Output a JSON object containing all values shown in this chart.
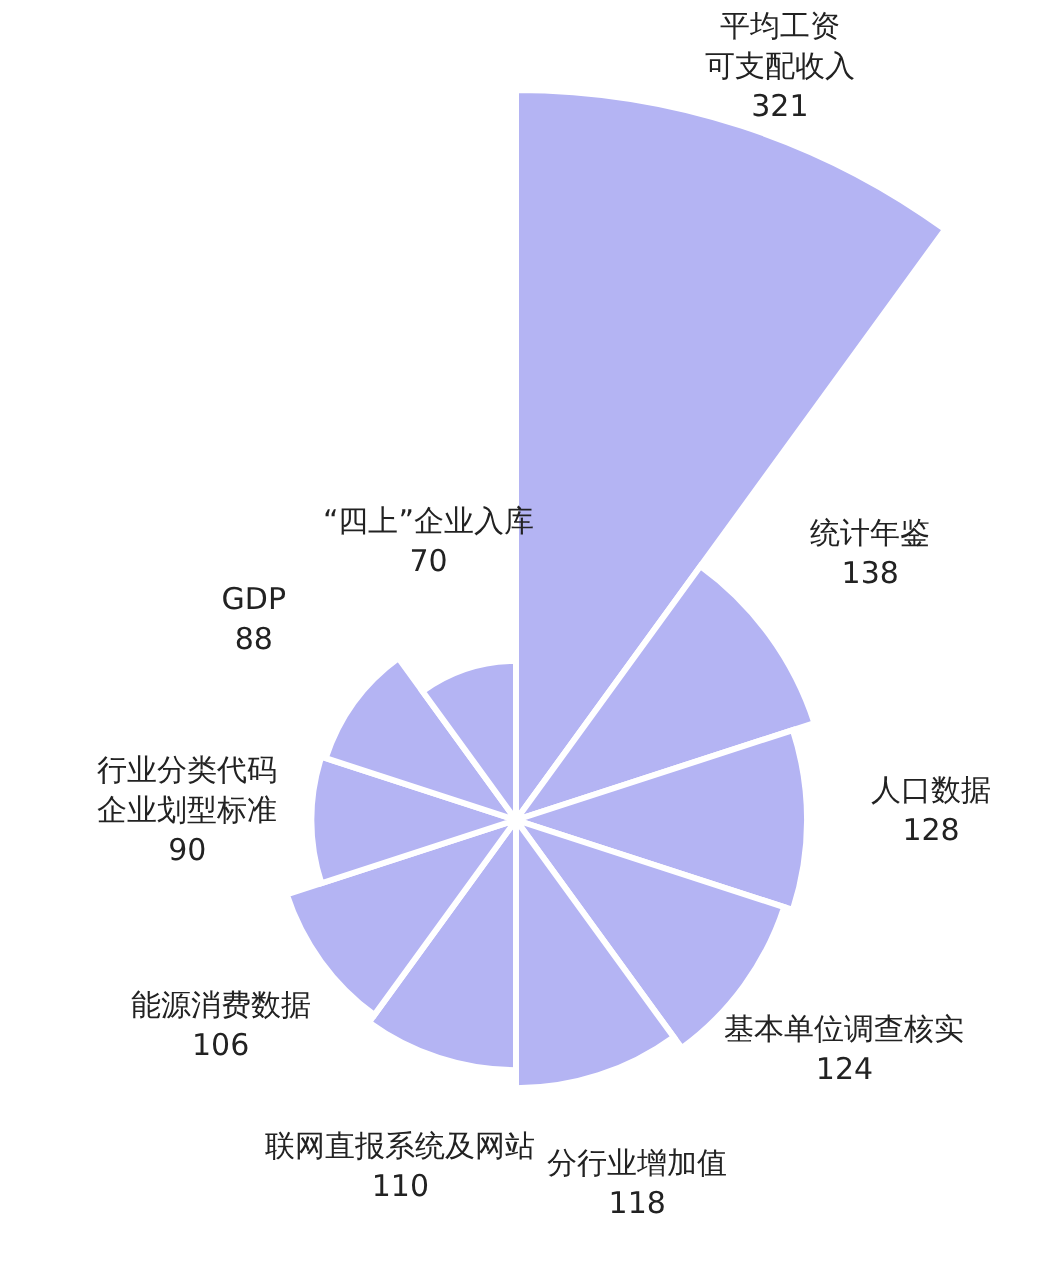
{
  "chart_data": {
    "type": "other",
    "categories": [
      "平均工资可支配收入",
      "统计年鉴",
      "人口数据",
      "基本单位调查核实",
      "分行业增加值",
      "联网直报系统及网站",
      "能源消费数据",
      "行业分类代码企业划型标准",
      "GDP",
      "“四上”企业入库"
    ],
    "values": [
      321,
      138,
      128,
      124,
      118,
      110,
      106,
      90,
      88,
      70
    ],
    "color": "#b4b4f3",
    "data_labels": true
  }
}
